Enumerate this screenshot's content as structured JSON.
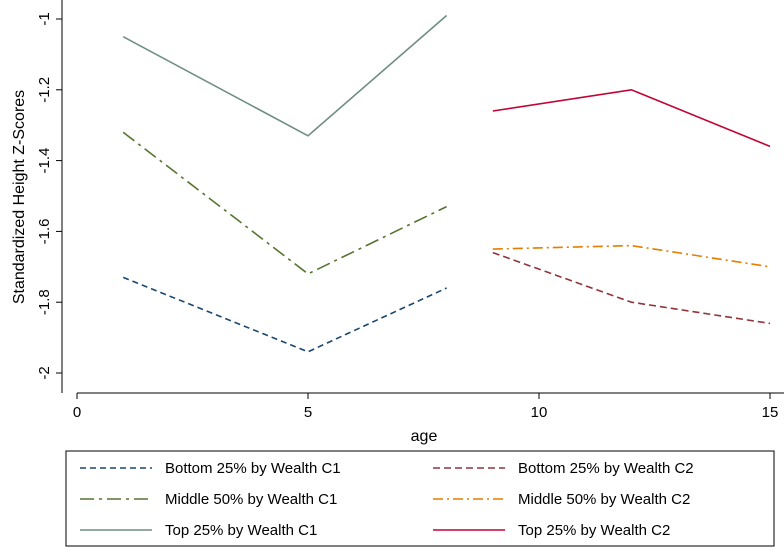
{
  "chart_data": {
    "type": "line",
    "title": "",
    "xlabel": "age",
    "ylabel": "Standardized Height Z-Scores",
    "xlim": [
      0,
      15
    ],
    "ylim": [
      -2,
      -1
    ],
    "x_ticks": [
      0,
      5,
      10,
      15
    ],
    "x_tick_labels": [
      "0",
      "5",
      "10",
      "15"
    ],
    "y_ticks": [
      -2,
      -1.8,
      -1.6,
      -1.4,
      -1.2,
      -1
    ],
    "y_tick_labels": [
      "-2",
      "-1.8",
      "-1.6",
      "-1.4",
      "-1.2",
      "-1"
    ],
    "grid": false,
    "legend_position": "bottom",
    "series": [
      {
        "name": "Bottom 25% by Wealth C1",
        "color": "#1a476f",
        "dash": "6,4",
        "x": [
          1,
          5,
          8
        ],
        "y": [
          -1.73,
          -1.94,
          -1.76
        ]
      },
      {
        "name": "Middle 50% by Wealth C1",
        "color": "#55752f",
        "dash": "14,5,3,5",
        "x": [
          1,
          5,
          8
        ],
        "y": [
          -1.32,
          -1.72,
          -1.53
        ]
      },
      {
        "name": "Top 25% by Wealth C1",
        "color": "#6e8e84",
        "dash": "",
        "x": [
          1,
          5,
          8
        ],
        "y": [
          -1.05,
          -1.33,
          -0.99
        ]
      },
      {
        "name": "Bottom 25% by Wealth C2",
        "color": "#90353b",
        "dash": "7,4",
        "x": [
          9,
          12,
          15
        ],
        "y": [
          -1.66,
          -1.8,
          -1.86
        ]
      },
      {
        "name": "Middle 50% by Wealth C2",
        "color": "#e37e00",
        "dash": "10,4,2,4",
        "x": [
          9,
          12,
          15
        ],
        "y": [
          -1.65,
          -1.64,
          -1.7
        ]
      },
      {
        "name": "Top 25% by Wealth C2",
        "color": "#c10534",
        "dash": "",
        "x": [
          9,
          12,
          15
        ],
        "y": [
          -1.26,
          -1.2,
          -1.36
        ]
      }
    ]
  }
}
